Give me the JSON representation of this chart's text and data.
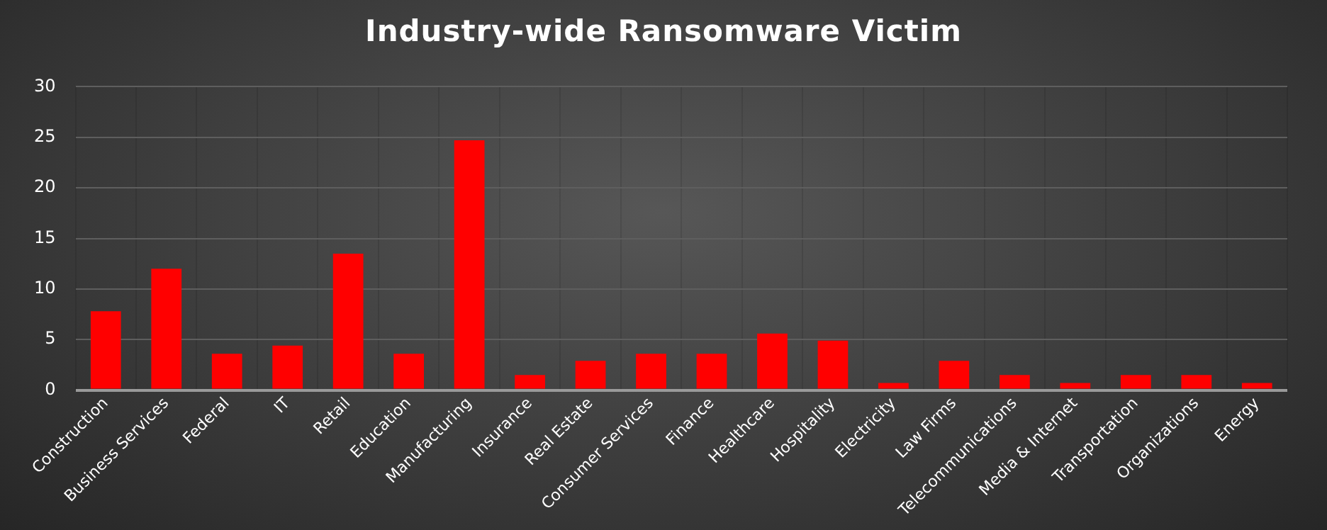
{
  "chart_data": {
    "type": "bar",
    "title": "Industry-wide Ransomware Victim",
    "categories": [
      "Construction",
      "Business Services",
      "Federal",
      "IT",
      "Retail",
      "Education",
      "Manufacturing",
      "Insurance",
      "Real Estate",
      "Consumer Services",
      "Finance",
      "Healthcare",
      "Hospitality",
      "Electricity",
      "Law Firms",
      "Telecommunications",
      "Media & Internet",
      "Transportation",
      "Organizations",
      "Energy"
    ],
    "values": [
      7.8,
      12.0,
      3.6,
      4.4,
      13.5,
      3.6,
      24.7,
      1.5,
      2.9,
      3.6,
      3.6,
      5.6,
      4.9,
      0.7,
      2.9,
      1.5,
      0.7,
      1.5,
      1.5,
      0.7
    ],
    "color": "#ff0000",
    "ylim": [
      0,
      30
    ],
    "yticks": [
      0,
      5,
      10,
      15,
      20,
      25,
      30
    ],
    "grid": true,
    "legend": false
  }
}
